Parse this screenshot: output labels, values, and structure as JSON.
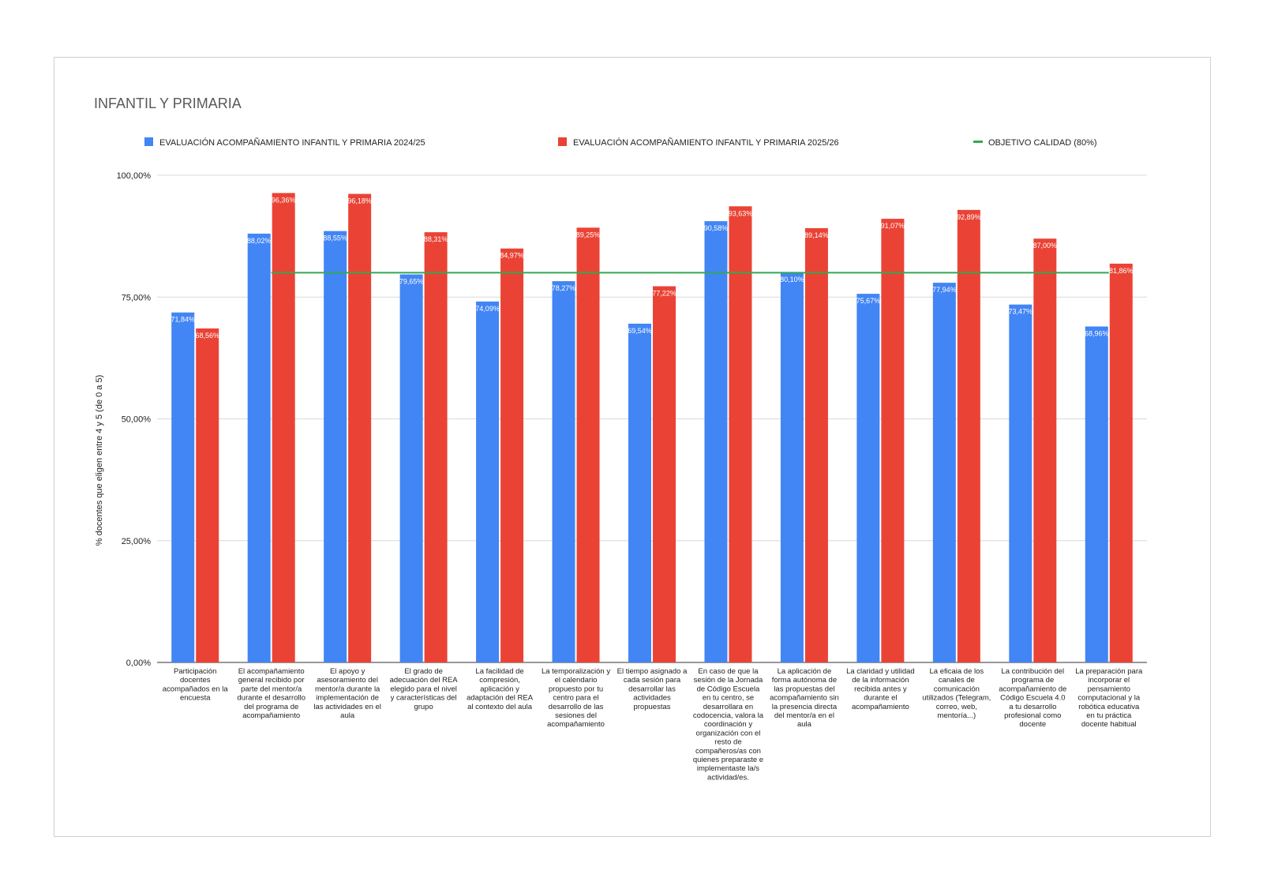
{
  "chart_data": {
    "type": "bar",
    "title": "INFANTIL Y PRIMARIA",
    "ylabel": "% docentes que eligen entre 4 y 5 (de 0 a 5)",
    "xlabel": "",
    "ylim": [
      0,
      100
    ],
    "yticks": [
      "0,00%",
      "25,00%",
      "50,00%",
      "75,00%",
      "100,00%"
    ],
    "ytick_values": [
      0,
      25,
      50,
      75,
      100
    ],
    "legend_position": "top",
    "grid": true,
    "categories": [
      "Participación docentes acompañados en la encuesta",
      "El acompañamiento general recibido por parte del mentor/a durante el desarrollo del programa de acompañamiento",
      "El apoyo y asesoramiento del mentor/a durante la implementación de las actividades en el aula",
      "El grado de adecuación del REA elegido para el nivel y características del grupo",
      "La facilidad de compresión, aplicación y adaptación del REA al contexto del aula",
      "La temporalización y el calendario propuesto por tu centro para el desarrollo de las sesiones del acompañamiento",
      "El tiempo asignado a cada sesión para desarrollar las actividades propuestas",
      "En caso de que la sesión de la Jornada de Código Escuela en tu centro, se desarrollara en codocencia, valora la coordinación y organización con el resto de compañeros/as con quienes preparaste e implementaste la/s actividad/es.",
      "La aplicación de forma autónoma de las propuestas del acompañamiento sin la presencia directa del mentor/a en el aula",
      "La claridad y utilidad de la información recibida antes y durante el acompañamiento",
      "La eficaia de los canales de comunicación utilizados (Telegram, correo, web, mentoría...)",
      "La contribución del programa de acompañamiento de Código Escuela 4.0 a tu desarrollo profesional como docente",
      "La preparación para incorporar el pensamiento computacional y la robótica educativa en tu práctica docente habitual"
    ],
    "category_lines": [
      [
        "Participación",
        "docentes",
        "acompañados en la",
        "encuesta"
      ],
      [
        "El acompañamiento",
        "general recibido por",
        "parte del mentor/a",
        "durante el desarrollo",
        "del programa de",
        "acompañamiento"
      ],
      [
        "El apoyo y",
        "asesoramiento del",
        "mentor/a durante la",
        "implementación de",
        "las actividades en el",
        "aula"
      ],
      [
        "El grado de",
        "adecuación del REA",
        "elegido para el nivel",
        "y características del",
        "grupo"
      ],
      [
        "La facilidad de",
        "compresión,",
        "aplicación y",
        "adaptación del REA",
        "al contexto del aula"
      ],
      [
        "La temporalización y",
        "el calendario",
        "propuesto por tu",
        "centro para el",
        "desarrollo de las",
        "sesiones del",
        "acompañamiento"
      ],
      [
        "El tiempo asignado a",
        "cada sesión para",
        "desarrollar las",
        "actividades",
        "propuestas"
      ],
      [
        "En caso de que la",
        "sesión de la Jornada",
        "de Código Escuela",
        "en tu centro, se",
        "desarrollara en",
        "codocencia, valora la",
        "coordinación y",
        "organización con el",
        "resto de",
        "compañeros/as con",
        "quienes preparaste e",
        "implementaste la/s",
        "actividad/es."
      ],
      [
        "La aplicación de",
        "forma autónoma de",
        "las propuestas del",
        "acompañamiento sin",
        "la presencia directa",
        "del mentor/a en el",
        "aula"
      ],
      [
        "La claridad y utilidad",
        "de la información",
        "recibida antes y",
        "durante el",
        "acompañamiento"
      ],
      [
        "La eficaia de los",
        "canales de",
        "comunicación",
        "utilizados (Telegram,",
        "correo, web,",
        "mentoría...)"
      ],
      [
        "La contribución del",
        "programa de",
        "acompañamiento de",
        "Código Escuela 4.0",
        "a tu desarrollo",
        "profesional como",
        "docente"
      ],
      [
        "La preparación para",
        "incorporar el",
        "pensamiento",
        "computacional y la",
        "robótica educativa",
        "en tu práctica",
        "docente habitual"
      ]
    ],
    "series": [
      {
        "name": "EVALUACIÓN ACOMPAÑAMIENTO INFANTIL Y PRIMARIA 2024/25",
        "color": "#4285f4",
        "values": [
          71.84,
          88.02,
          88.55,
          79.65,
          74.09,
          78.27,
          69.54,
          90.58,
          80.1,
          75.67,
          77.94,
          73.47,
          68.96
        ],
        "labels": [
          "71,84%",
          "88,02%",
          "88,55%",
          "79,65%",
          "74,09%",
          "78,27%",
          "69,54%",
          "90,58%",
          "80,10%",
          "75,67%",
          "77,94%",
          "73,47%",
          "68,96%"
        ]
      },
      {
        "name": "EVALUACIÓN ACOMPAÑAMIENTO INFANTIL Y PRIMARIA 2025/26",
        "color": "#ea4335",
        "values": [
          68.56,
          96.36,
          96.18,
          88.31,
          84.97,
          89.25,
          77.22,
          93.63,
          89.14,
          91.07,
          92.89,
          87.0,
          81.86
        ],
        "labels": [
          "68,56%",
          "96,36%",
          "96,18%",
          "88,31%",
          "84,97%",
          "89,25%",
          "77,22%",
          "93,63%",
          "89,14%",
          "91,07%",
          "92,89%",
          "87,00%",
          "81,86%"
        ]
      }
    ],
    "target_line": {
      "name": "OBJETIVO CALIDAD (80%)",
      "color": "#34a853",
      "value": 80
    }
  }
}
